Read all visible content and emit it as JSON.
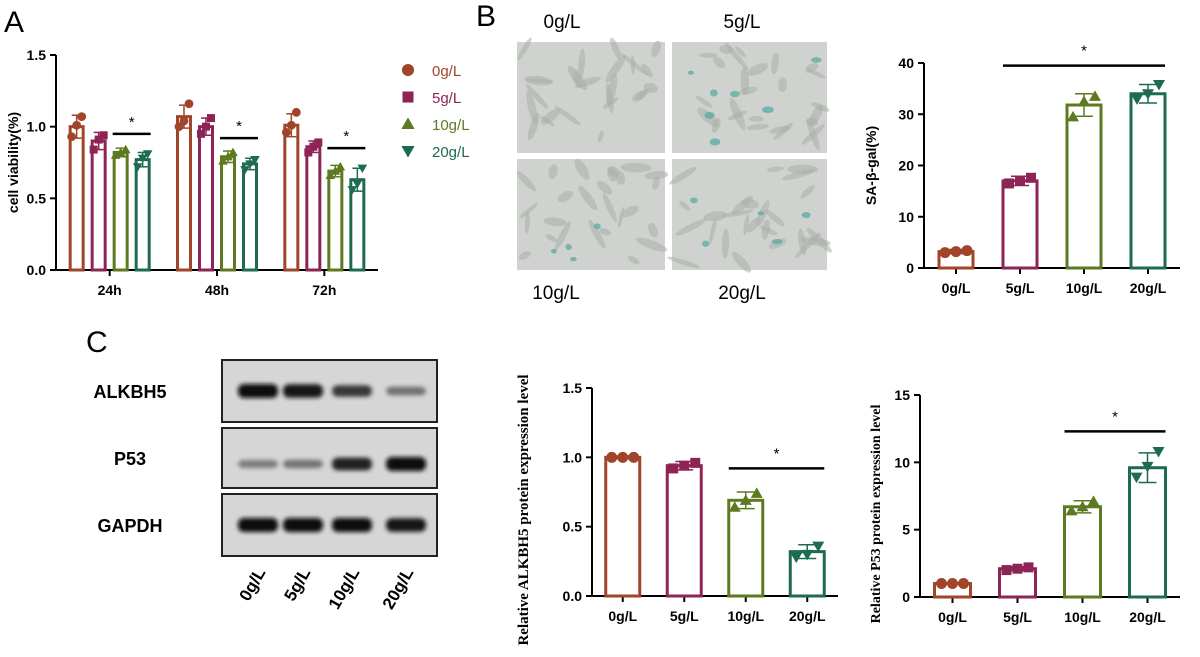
{
  "panels": {
    "A": "A",
    "B": "B",
    "C": "C"
  },
  "colors": {
    "0g/L": "#a0452a",
    "5g/L": "#8e2455",
    "10g/L": "#5e7a21",
    "20g/L": "#1d6b52",
    "axis": "#000000"
  },
  "micrograph_labels": [
    "0g/L",
    "5g/L",
    "10g/L",
    "20g/L"
  ],
  "blot": {
    "rows": [
      "ALKBH5",
      "P53",
      "GAPDH"
    ],
    "lanes": [
      "0g/L",
      "5g/L",
      "10g/L",
      "20g/L"
    ],
    "intensity": {
      "ALKBH5": [
        1.0,
        0.94,
        0.7,
        0.32
      ],
      "P53": [
        0.25,
        0.3,
        0.85,
        1.0
      ],
      "GAPDH": [
        1.0,
        1.0,
        1.0,
        0.95
      ]
    }
  },
  "chart_data": [
    {
      "id": "A",
      "type": "bar",
      "ylabel": "cell viability(%)",
      "xlabel": "",
      "categories": [
        "24h",
        "48h",
        "72h"
      ],
      "ylim": [
        0.0,
        1.5
      ],
      "yticks": [
        "0.0",
        "0.5",
        "1.0",
        "1.5"
      ],
      "legend_position": "right",
      "series": [
        {
          "name": "0g/L",
          "marker": "circle",
          "values": [
            1.0,
            1.07,
            1.01
          ],
          "err": [
            0.08,
            0.08,
            0.08
          ],
          "points": [
            [
              0.93,
              1.01,
              1.07
            ],
            [
              1.0,
              1.04,
              1.16
            ],
            [
              0.96,
              1.01,
              1.1
            ]
          ]
        },
        {
          "name": "5g/L",
          "marker": "square",
          "values": [
            0.9,
            1.0,
            0.86
          ],
          "err": [
            0.06,
            0.06,
            0.04
          ],
          "points": [
            [
              0.84,
              0.91,
              0.94
            ],
            [
              0.95,
              1.0,
              1.06
            ],
            [
              0.82,
              0.86,
              0.89
            ]
          ]
        },
        {
          "name": "10g/L",
          "marker": "triangle-up",
          "values": [
            0.82,
            0.79,
            0.69
          ],
          "err": [
            0.03,
            0.04,
            0.04
          ],
          "points": [
            [
              0.8,
              0.82,
              0.84
            ],
            [
              0.76,
              0.79,
              0.82
            ],
            [
              0.66,
              0.69,
              0.72
            ]
          ]
        },
        {
          "name": "20g/L",
          "marker": "triangle-down",
          "values": [
            0.77,
            0.74,
            0.63
          ],
          "err": [
            0.05,
            0.04,
            0.08
          ],
          "points": [
            [
              0.72,
              0.78,
              0.81
            ],
            [
              0.7,
              0.74,
              0.77
            ],
            [
              0.56,
              0.6,
              0.71
            ]
          ]
        }
      ],
      "significance": [
        {
          "group": "24h",
          "from": "10g/L",
          "to": "20g/L",
          "label": "*",
          "y": 0.95
        },
        {
          "group": "48h",
          "from": "10g/L",
          "to": "20g/L",
          "label": "*",
          "y": 0.92
        },
        {
          "group": "72h",
          "from": "10g/L",
          "to": "20g/L",
          "label": "*",
          "y": 0.85
        }
      ]
    },
    {
      "id": "B",
      "type": "bar",
      "ylabel": "SA-β-gal(%)",
      "xlabel": "",
      "categories": [
        "0g/L",
        "5g/L",
        "10g/L",
        "20g/L"
      ],
      "ylim": [
        0,
        40
      ],
      "yticks": [
        "0",
        "10",
        "20",
        "30",
        "40"
      ],
      "values": [
        3.2,
        17.0,
        31.8,
        34.0
      ],
      "err": [
        0.4,
        0.9,
        2.2,
        1.8
      ],
      "markers": [
        "circle",
        "square",
        "triangle-up",
        "triangle-down"
      ],
      "points": [
        [
          3.0,
          3.2,
          3.4
        ],
        [
          16.5,
          17.0,
          17.6
        ],
        [
          29.5,
          32.5,
          33.5
        ],
        [
          33.0,
          34.0,
          35.8
        ]
      ],
      "significance": [
        {
          "from": "5g/L",
          "to": "20g/L",
          "label": "*",
          "y": 39.5
        }
      ]
    },
    {
      "id": "C-ALKBH5",
      "type": "bar",
      "ylabel": "Relative ALKBH5 protein expression  level",
      "xlabel": "",
      "categories": [
        "0g/L",
        "5g/L",
        "10g/L",
        "20g/L"
      ],
      "ylim": [
        0.0,
        1.5
      ],
      "yticks": [
        "0.0",
        "0.5",
        "1.0",
        "1.5"
      ],
      "values": [
        1.0,
        0.94,
        0.69,
        0.32
      ],
      "err": [
        0.01,
        0.03,
        0.06,
        0.05
      ],
      "markers": [
        "circle",
        "square",
        "triangle-up",
        "triangle-down"
      ],
      "points": [
        [
          1.0,
          1.0,
          1.0
        ],
        [
          0.92,
          0.94,
          0.96
        ],
        [
          0.64,
          0.69,
          0.74
        ],
        [
          0.28,
          0.3,
          0.36
        ]
      ],
      "significance": [
        {
          "from": "10g/L",
          "to": "20g/L",
          "label": "*",
          "y": 0.92
        }
      ]
    },
    {
      "id": "C-P53",
      "type": "bar",
      "ylabel": "Relative  P53 protein expression  level",
      "xlabel": "",
      "categories": [
        "0g/L",
        "5g/L",
        "10g/L",
        "20g/L"
      ],
      "ylim": [
        0,
        15
      ],
      "yticks": [
        "0",
        "5",
        "10",
        "15"
      ],
      "values": [
        1.0,
        2.1,
        6.7,
        9.6
      ],
      "err": [
        0.05,
        0.15,
        0.45,
        1.1
      ],
      "markers": [
        "circle",
        "square",
        "triangle-up",
        "triangle-down"
      ],
      "points": [
        [
          1.0,
          1.0,
          1.0
        ],
        [
          2.0,
          2.1,
          2.2
        ],
        [
          6.4,
          6.7,
          7.1
        ],
        [
          8.9,
          9.7,
          10.8
        ]
      ],
      "significance": [
        {
          "from": "10g/L",
          "to": "20g/L",
          "label": "*",
          "y": 12.3
        }
      ]
    }
  ]
}
